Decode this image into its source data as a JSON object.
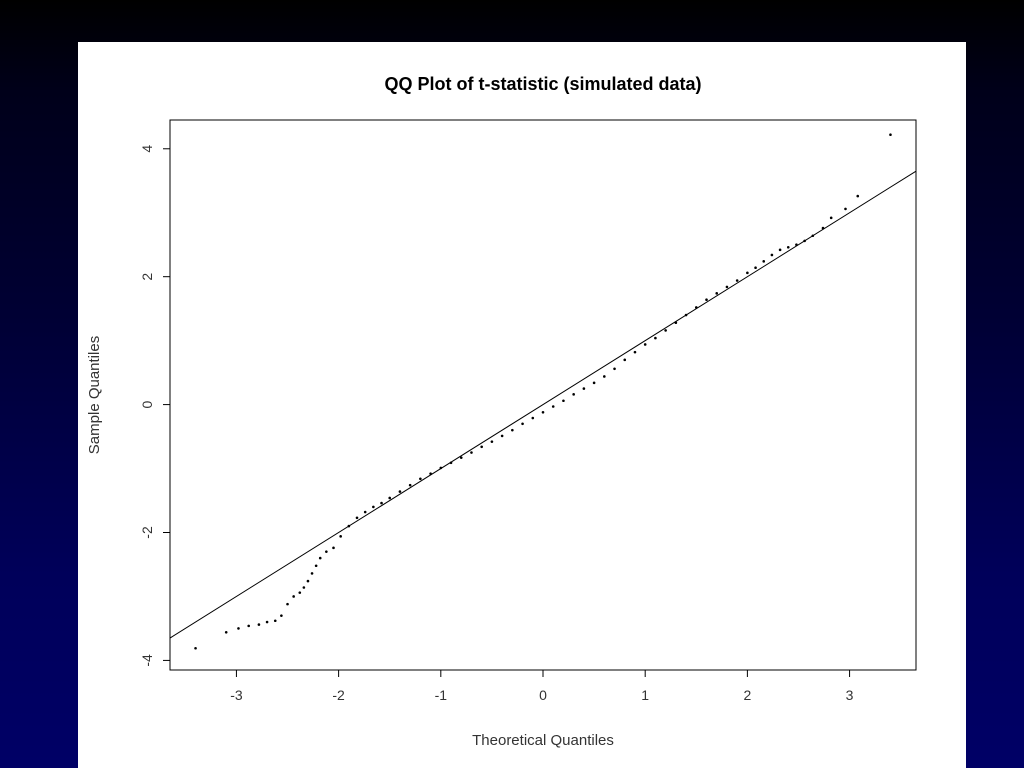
{
  "chart_data": {
    "type": "scatter",
    "title": "QQ Plot of t-statistic (simulated data)",
    "xlabel": "Theoretical Quantiles",
    "ylabel": "Sample Quantiles",
    "xlim": [
      -3.65,
      3.65
    ],
    "ylim": [
      -4.15,
      4.45
    ],
    "xticks": [
      -3,
      -2,
      -1,
      0,
      1,
      2,
      3
    ],
    "yticks": [
      -4,
      -2,
      0,
      2,
      4
    ],
    "grid": false,
    "reference_line": {
      "intercept": 0.0,
      "slope": 1.0
    },
    "series": [
      {
        "points": [
          [
            -3.4,
            -3.81
          ],
          [
            -3.1,
            -3.56
          ],
          [
            -2.98,
            -3.5
          ],
          [
            -2.88,
            -3.46
          ],
          [
            -2.78,
            -3.44
          ],
          [
            -2.7,
            -3.4
          ],
          [
            -2.62,
            -3.38
          ],
          [
            -2.56,
            -3.3
          ],
          [
            -2.5,
            -3.12
          ],
          [
            -2.44,
            -3.0
          ],
          [
            -2.38,
            -2.94
          ],
          [
            -2.34,
            -2.86
          ],
          [
            -2.3,
            -2.76
          ],
          [
            -2.26,
            -2.64
          ],
          [
            -2.22,
            -2.52
          ],
          [
            -2.18,
            -2.4
          ],
          [
            -2.12,
            -2.3
          ],
          [
            -2.05,
            -2.24
          ],
          [
            -1.98,
            -2.06
          ],
          [
            -1.9,
            -1.9
          ],
          [
            -1.82,
            -1.77
          ],
          [
            -1.74,
            -1.68
          ],
          [
            -1.66,
            -1.6
          ],
          [
            -1.58,
            -1.54
          ],
          [
            -1.5,
            -1.46
          ],
          [
            -1.4,
            -1.36
          ],
          [
            -1.3,
            -1.26
          ],
          [
            -1.2,
            -1.16
          ],
          [
            -1.1,
            -1.08
          ],
          [
            -1.0,
            -0.99
          ],
          [
            -0.9,
            -0.91
          ],
          [
            -0.8,
            -0.83
          ],
          [
            -0.7,
            -0.75
          ],
          [
            -0.6,
            -0.66
          ],
          [
            -0.5,
            -0.58
          ],
          [
            -0.4,
            -0.49
          ],
          [
            -0.3,
            -0.4
          ],
          [
            -0.2,
            -0.3
          ],
          [
            -0.1,
            -0.21
          ],
          [
            0.0,
            -0.12
          ],
          [
            0.1,
            -0.03
          ],
          [
            0.2,
            0.06
          ],
          [
            0.3,
            0.16
          ],
          [
            0.4,
            0.25
          ],
          [
            0.5,
            0.34
          ],
          [
            0.6,
            0.44
          ],
          [
            0.7,
            0.56
          ],
          [
            0.8,
            0.7
          ],
          [
            0.9,
            0.82
          ],
          [
            1.0,
            0.94
          ],
          [
            1.1,
            1.04
          ],
          [
            1.2,
            1.16
          ],
          [
            1.3,
            1.28
          ],
          [
            1.4,
            1.4
          ],
          [
            1.5,
            1.52
          ],
          [
            1.6,
            1.64
          ],
          [
            1.7,
            1.74
          ],
          [
            1.8,
            1.84
          ],
          [
            1.9,
            1.94
          ],
          [
            2.0,
            2.06
          ],
          [
            2.08,
            2.14
          ],
          [
            2.16,
            2.24
          ],
          [
            2.24,
            2.34
          ],
          [
            2.32,
            2.42
          ],
          [
            2.4,
            2.46
          ],
          [
            2.48,
            2.5
          ],
          [
            2.56,
            2.56
          ],
          [
            2.64,
            2.64
          ],
          [
            2.74,
            2.76
          ],
          [
            2.82,
            2.92
          ],
          [
            2.96,
            3.06
          ],
          [
            3.08,
            3.26
          ],
          [
            3.4,
            4.22
          ]
        ]
      }
    ]
  }
}
